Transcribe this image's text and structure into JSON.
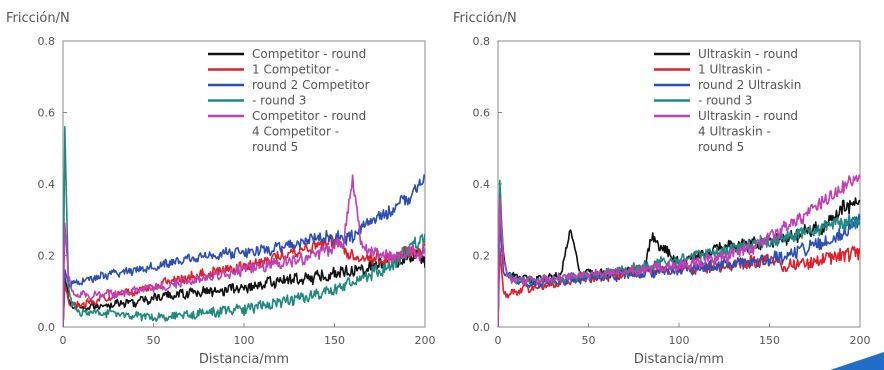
{
  "chart_data": [
    {
      "type": "line",
      "ylabel": "Fricción/N",
      "xlabel": "Distancia/mm",
      "xlim": [
        0,
        200
      ],
      "ylim": [
        0,
        0.8
      ],
      "xticks": [
        {
          "value": 0,
          "label": "0"
        },
        {
          "value": 50,
          "label": "50"
        },
        {
          "value": 100,
          "label": "100"
        },
        {
          "value": 150,
          "label": "150"
        },
        {
          "value": 200,
          "label": "200"
        }
      ],
      "yticks": [
        {
          "value": 0.0,
          "label": "0.0"
        },
        {
          "value": 0.2,
          "label": "0.2"
        },
        {
          "value": 0.4,
          "label": "0.4"
        },
        {
          "value": 0.6,
          "label": "0.6"
        },
        {
          "value": 0.8,
          "label": "0.8"
        }
      ],
      "legend_position": "top-right",
      "legend_lines": [
        "Competitor - round",
        "1 Competitor -",
        "round 2 Competitor",
        "- round 3",
        "Competitor - round",
        "4 Competitor -",
        "round 5"
      ],
      "series": [
        {
          "name": "Competitor - round 1",
          "color": "#111111",
          "x": [
            0,
            1,
            3,
            5,
            10,
            20,
            40,
            60,
            80,
            100,
            120,
            140,
            160,
            180,
            195,
            200
          ],
          "y": [
            0.0,
            0.14,
            0.08,
            0.06,
            0.05,
            0.06,
            0.07,
            0.09,
            0.1,
            0.11,
            0.13,
            0.14,
            0.16,
            0.18,
            0.2,
            0.19
          ]
        },
        {
          "name": "Competitor - round 2",
          "color": "#e0202a",
          "x": [
            0,
            1,
            3,
            5,
            10,
            20,
            40,
            60,
            80,
            100,
            120,
            140,
            150,
            160,
            180,
            200
          ],
          "y": [
            0.0,
            0.12,
            0.07,
            0.06,
            0.06,
            0.08,
            0.1,
            0.13,
            0.15,
            0.17,
            0.2,
            0.23,
            0.24,
            0.2,
            0.19,
            0.22
          ]
        },
        {
          "name": "Competitor - round 3",
          "color": "#2b4fb5",
          "x": [
            0,
            1,
            3,
            5,
            10,
            20,
            40,
            60,
            80,
            100,
            120,
            140,
            160,
            170,
            180,
            190,
            200
          ],
          "y": [
            0.0,
            0.16,
            0.12,
            0.12,
            0.13,
            0.14,
            0.16,
            0.18,
            0.2,
            0.21,
            0.22,
            0.25,
            0.25,
            0.3,
            0.32,
            0.36,
            0.41
          ]
        },
        {
          "name": "Competitor - round 4",
          "color": "#1f8a82",
          "x": [
            0,
            1,
            3,
            5,
            10,
            20,
            40,
            60,
            80,
            100,
            120,
            140,
            150,
            160,
            180,
            200
          ],
          "y": [
            0.0,
            0.56,
            0.12,
            0.06,
            0.04,
            0.04,
            0.03,
            0.03,
            0.04,
            0.05,
            0.07,
            0.09,
            0.1,
            0.13,
            0.17,
            0.25
          ]
        },
        {
          "name": "Competitor - round 5",
          "color": "#c040b8",
          "x": [
            0,
            1,
            3,
            5,
            10,
            20,
            40,
            60,
            80,
            100,
            120,
            140,
            155,
            160,
            165,
            180,
            200
          ],
          "y": [
            0.0,
            0.29,
            0.14,
            0.1,
            0.09,
            0.09,
            0.1,
            0.12,
            0.14,
            0.16,
            0.18,
            0.2,
            0.24,
            0.42,
            0.22,
            0.2,
            0.21
          ]
        }
      ]
    },
    {
      "type": "line",
      "ylabel": "Fricción/N",
      "xlabel": "Distancia/mm",
      "xlim": [
        0,
        200
      ],
      "ylim": [
        0,
        0.8
      ],
      "xticks": [
        {
          "value": 0,
          "label": "0"
        },
        {
          "value": 50,
          "label": "50"
        },
        {
          "value": 100,
          "label": "100"
        },
        {
          "value": 150,
          "label": "150"
        },
        {
          "value": 200,
          "label": "200"
        }
      ],
      "yticks": [
        {
          "value": 0.0,
          "label": "0.0"
        },
        {
          "value": 0.2,
          "label": "0.2"
        },
        {
          "value": 0.4,
          "label": "0.4"
        },
        {
          "value": 0.6,
          "label": "0.6"
        },
        {
          "value": 0.8,
          "label": "0.8"
        }
      ],
      "legend_position": "top-right",
      "legend_lines": [
        "Ultraskin - round",
        "1 Ultraskin -",
        "round 2 Ultraskin",
        "- round 3",
        "Ultraskin - round",
        "4 Ultraskin -",
        "round 5"
      ],
      "series": [
        {
          "name": "Ultraskin - round 1",
          "color": "#111111",
          "x": [
            0,
            1,
            3,
            5,
            10,
            20,
            30,
            35,
            40,
            45,
            60,
            80,
            85,
            100,
            120,
            140,
            160,
            180,
            190,
            200
          ],
          "y": [
            0.0,
            0.35,
            0.2,
            0.15,
            0.14,
            0.13,
            0.14,
            0.15,
            0.28,
            0.15,
            0.15,
            0.16,
            0.25,
            0.18,
            0.22,
            0.23,
            0.25,
            0.28,
            0.33,
            0.35
          ]
        },
        {
          "name": "Ultraskin - round 2",
          "color": "#e0202a",
          "x": [
            0,
            1,
            3,
            5,
            10,
            20,
            40,
            60,
            80,
            100,
            120,
            140,
            150,
            160,
            180,
            200
          ],
          "y": [
            0.0,
            0.22,
            0.1,
            0.09,
            0.1,
            0.11,
            0.13,
            0.14,
            0.16,
            0.16,
            0.17,
            0.18,
            0.19,
            0.17,
            0.19,
            0.21
          ]
        },
        {
          "name": "Ultraskin - round 3",
          "color": "#2b4fb5",
          "x": [
            0,
            1,
            3,
            5,
            10,
            20,
            40,
            60,
            80,
            100,
            120,
            140,
            160,
            170,
            180,
            190,
            200
          ],
          "y": [
            0.0,
            0.3,
            0.16,
            0.14,
            0.13,
            0.12,
            0.13,
            0.14,
            0.15,
            0.16,
            0.17,
            0.18,
            0.2,
            0.22,
            0.24,
            0.26,
            0.3
          ]
        },
        {
          "name": "Ultraskin - round 4",
          "color": "#1f8a82",
          "x": [
            0,
            1,
            3,
            5,
            10,
            20,
            40,
            60,
            80,
            100,
            120,
            140,
            160,
            180,
            200
          ],
          "y": [
            0.0,
            0.41,
            0.2,
            0.15,
            0.13,
            0.13,
            0.14,
            0.15,
            0.17,
            0.19,
            0.21,
            0.23,
            0.25,
            0.28,
            0.3
          ]
        },
        {
          "name": "Ultraskin - round 5",
          "color": "#c040b8",
          "x": [
            0,
            1,
            3,
            5,
            10,
            20,
            40,
            60,
            80,
            100,
            120,
            140,
            160,
            180,
            200
          ],
          "y": [
            0.0,
            0.36,
            0.18,
            0.14,
            0.13,
            0.13,
            0.14,
            0.15,
            0.16,
            0.17,
            0.19,
            0.22,
            0.28,
            0.35,
            0.43
          ]
        }
      ]
    }
  ]
}
